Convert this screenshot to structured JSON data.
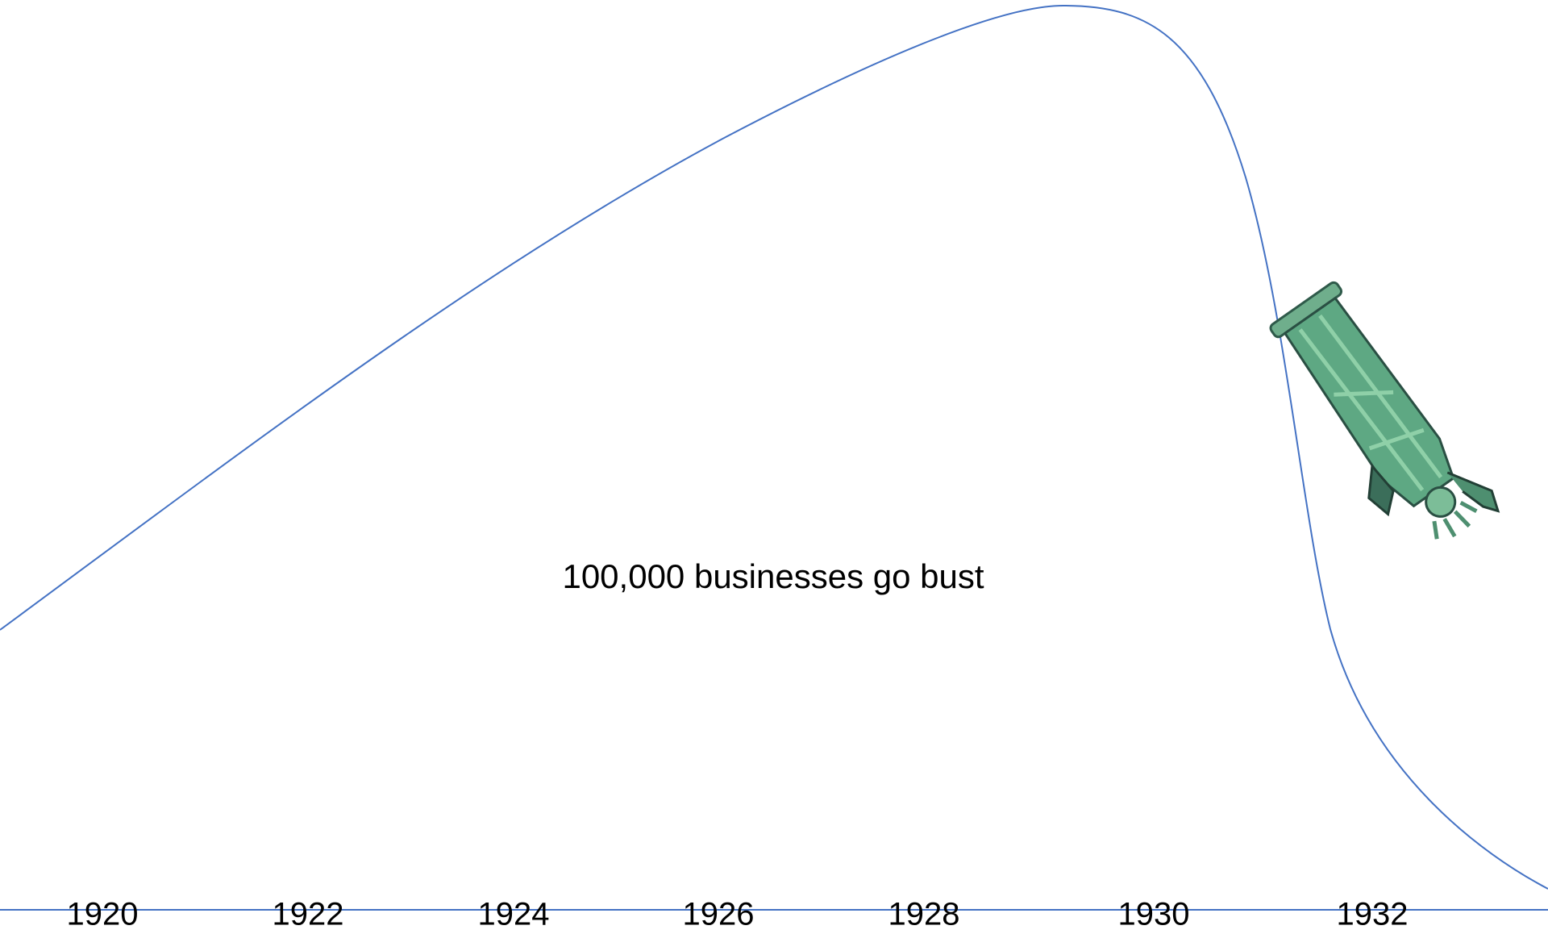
{
  "annotation": "100,000 businesses go bust",
  "timeline": {
    "labels": [
      "1920",
      "1922",
      "1924",
      "1926",
      "1928",
      "1930",
      "1932"
    ]
  }
}
